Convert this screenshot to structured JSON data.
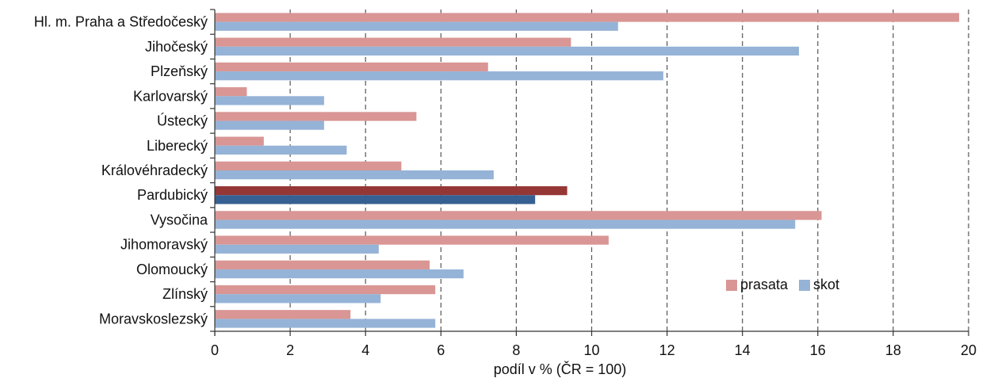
{
  "chart_data": {
    "type": "bar",
    "orientation": "horizontal",
    "categories": [
      "Hl. m. Praha a Středočeský",
      "Jihočeský",
      "Plzeňský",
      "Karlovarský",
      "Ústecký",
      "Liberecký",
      "Královéhradecký",
      "Pardubický",
      "Vysočina",
      "Jihomoravský",
      "Olomoucký",
      "Zlínský",
      "Moravskoslezský"
    ],
    "series": [
      {
        "name": "prasata",
        "color": "#d99694",
        "values": [
          19.75,
          9.45,
          7.25,
          0.85,
          5.35,
          1.3,
          4.95,
          9.35,
          16.1,
          10.45,
          5.7,
          5.85,
          3.6
        ]
      },
      {
        "name": "skot",
        "color": "#95b3d7",
        "values": [
          10.7,
          15.5,
          11.9,
          2.9,
          2.9,
          3.5,
          7.4,
          8.5,
          15.4,
          4.35,
          6.6,
          4.4,
          5.85
        ]
      }
    ],
    "highlight": {
      "category": "Pardubický",
      "colors": {
        "prasata": "#953735",
        "skot": "#376092"
      }
    },
    "xlim": [
      0,
      20
    ],
    "xticks": [
      0,
      2,
      4,
      6,
      8,
      10,
      12,
      14,
      16,
      18,
      20
    ],
    "xlabel": "podíl v % (ČR = 100)",
    "grid": "vertical dashed",
    "legend_position": "bottom-right"
  }
}
